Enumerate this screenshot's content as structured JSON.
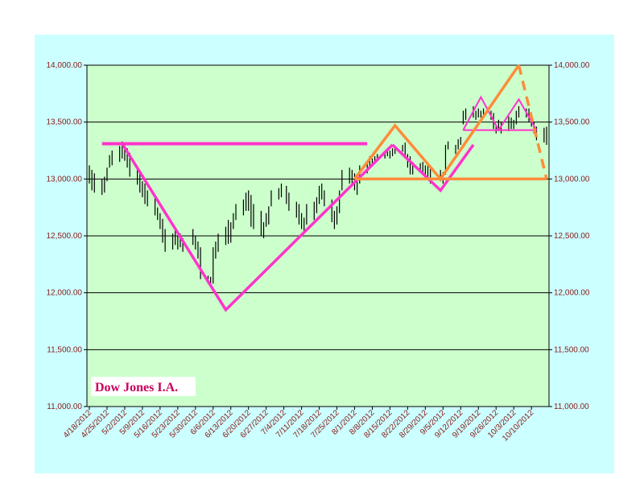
{
  "chart_data": {
    "type": "line",
    "title": "Dow Jones I.A.",
    "xlabel": "",
    "ylabel": "",
    "ylim": [
      11000,
      14000
    ],
    "y_ticks": [
      "11,000.00",
      "11,500.00",
      "12,000.00",
      "12,500.00",
      "13,000.00",
      "13,500.00",
      "14,000.00"
    ],
    "y_tick_values": [
      11000,
      11500,
      12000,
      12500,
      13000,
      13500,
      14000
    ],
    "y_ticks_right": [
      "11,000.00",
      "11,500.00",
      "12,000.00",
      "12,500.00",
      "13,000.00",
      "13,500.00",
      "14,000.00"
    ],
    "x_ticks": [
      "4/18/2012",
      "4/25/2012",
      "5/2/2012",
      "5/9/2012",
      "5/16/2012",
      "5/23/2012",
      "5/30/2012",
      "6/6/2012",
      "6/13/2012",
      "6/20/2012",
      "6/27/2012",
      "7/4/2012",
      "7/11/2012",
      "7/18/2012",
      "7/25/2012",
      "8/1/2012",
      "8/8/2012",
      "8/15/2012",
      "8/22/2012",
      "8/29/2012",
      "9/5/2012",
      "9/12/2012",
      "9/19/2012",
      "9/26/2012",
      "10/3/2012",
      "10/10/2012"
    ],
    "grid": true,
    "colors": {
      "background": "#ccffff",
      "plot": "#ccffcc",
      "price": "#000000",
      "magenta": "#ff33cc",
      "orange": "#ff8c3a",
      "axis_label": "#8b1a1a",
      "title": "#c8005a"
    },
    "price_series": {
      "name": "",
      "x": [
        "4/18/2012",
        "4/19/2012",
        "4/20/2012",
        "4/23/2012",
        "4/24/2012",
        "4/25/2012",
        "4/26/2012",
        "4/27/2012",
        "4/30/2012",
        "5/1/2012",
        "5/2/2012",
        "5/3/2012",
        "5/4/2012",
        "5/7/2012",
        "5/8/2012",
        "5/9/2012",
        "5/10/2012",
        "5/11/2012",
        "5/14/2012",
        "5/15/2012",
        "5/16/2012",
        "5/17/2012",
        "5/18/2012",
        "5/21/2012",
        "5/22/2012",
        "5/23/2012",
        "5/24/2012",
        "5/25/2012",
        "5/29/2012",
        "5/30/2012",
        "5/31/2012",
        "6/1/2012",
        "6/4/2012",
        "6/5/2012",
        "6/6/2012",
        "6/7/2012",
        "6/8/2012",
        "6/11/2012",
        "6/12/2012",
        "6/13/2012",
        "6/14/2012",
        "6/15/2012",
        "6/18/2012",
        "6/19/2012",
        "6/20/2012",
        "6/21/2012",
        "6/22/2012",
        "6/25/2012",
        "6/26/2012",
        "6/27/2012",
        "6/28/2012",
        "6/29/2012",
        "7/2/2012",
        "7/3/2012",
        "7/5/2012",
        "7/6/2012",
        "7/9/2012",
        "7/10/2012",
        "7/11/2012",
        "7/12/2012",
        "7/13/2012",
        "7/16/2012",
        "7/17/2012",
        "7/18/2012",
        "7/19/2012",
        "7/20/2012",
        "7/23/2012",
        "7/24/2012",
        "7/25/2012",
        "7/26/2012",
        "7/27/2012",
        "7/30/2012",
        "7/31/2012",
        "8/1/2012",
        "8/2/2012",
        "8/3/2012",
        "8/6/2012",
        "8/7/2012",
        "8/8/2012",
        "8/9/2012",
        "8/10/2012",
        "8/13/2012",
        "8/14/2012",
        "8/15/2012",
        "8/16/2012",
        "8/17/2012",
        "8/20/2012",
        "8/21/2012",
        "8/22/2012",
        "8/23/2012",
        "8/24/2012",
        "8/27/2012",
        "8/28/2012",
        "8/29/2012",
        "8/30/2012",
        "8/31/2012",
        "9/4/2012",
        "9/5/2012",
        "9/6/2012",
        "9/7/2012",
        "9/10/2012",
        "9/11/2012",
        "9/12/2012",
        "9/13/2012",
        "9/14/2012",
        "9/17/2012",
        "9/18/2012",
        "9/19/2012",
        "9/20/2012",
        "9/21/2012",
        "9/24/2012",
        "9/25/2012",
        "9/26/2012",
        "9/27/2012",
        "9/28/2012",
        "10/1/2012",
        "10/2/2012",
        "10/3/2012",
        "10/4/2012",
        "10/5/2012",
        "10/8/2012",
        "10/9/2012",
        "10/10/2012",
        "10/11/2012",
        "10/12/2012",
        "10/15/2012",
        "10/16/2012"
      ],
      "high": [
        13120,
        13080,
        13050,
        13000,
        13020,
        13100,
        13210,
        13250,
        13290,
        13330,
        13300,
        13270,
        13230,
        13100,
        13050,
        12980,
        12960,
        12900,
        12850,
        12750,
        12700,
        12650,
        12560,
        12520,
        12560,
        12500,
        12520,
        12480,
        12560,
        12500,
        12450,
        12400,
        12150,
        12140,
        12400,
        12450,
        12520,
        12580,
        12640,
        12620,
        12700,
        12780,
        12820,
        12880,
        12900,
        12860,
        12780,
        12720,
        12620,
        12700,
        12760,
        12900,
        12920,
        12960,
        12940,
        12880,
        12800,
        12780,
        12700,
        12660,
        12780,
        12800,
        12840,
        12940,
        12960,
        12900,
        12820,
        12720,
        12760,
        12900,
        13080,
        13100,
        13080,
        13050,
        13020,
        13120,
        13150,
        13200,
        13180,
        13200,
        13220,
        13240,
        13260,
        13250,
        13270,
        13280,
        13300,
        13320,
        13220,
        13200,
        13150,
        13140,
        13150,
        13120,
        13120,
        13120,
        13080,
        13060,
        13300,
        13330,
        13300,
        13350,
        13370,
        13600,
        13620,
        13640,
        13600,
        13620,
        13600,
        13620,
        13600,
        13580,
        13480,
        13520,
        13500,
        13550,
        13540,
        13520,
        13600,
        13640,
        13620,
        13620,
        13560,
        13500,
        13460,
        13450,
        13460
      ],
      "low": [
        12960,
        12900,
        12880,
        12860,
        12880,
        12980,
        13100,
        13120,
        13150,
        13180,
        13160,
        13100,
        13020,
        12950,
        12880,
        12840,
        12780,
        12760,
        12680,
        12640,
        12560,
        12440,
        12360,
        12380,
        12420,
        12380,
        12400,
        12360,
        12420,
        12380,
        12300,
        12120,
        12080,
        12060,
        12080,
        12300,
        12360,
        12420,
        12430,
        12440,
        12560,
        12640,
        12680,
        12720,
        12720,
        12580,
        12560,
        12500,
        12480,
        12580,
        12600,
        12760,
        12820,
        12840,
        12780,
        12720,
        12660,
        12600,
        12560,
        12520,
        12600,
        12640,
        12700,
        12780,
        12820,
        12760,
        12620,
        12560,
        12600,
        12700,
        12900,
        12960,
        12940,
        12900,
        12860,
        12960,
        13050,
        13100,
        13120,
        13140,
        13160,
        13180,
        13200,
        13180,
        13200,
        13220,
        13240,
        13180,
        13100,
        13040,
        13040,
        13060,
        13060,
        13000,
        13000,
        12960,
        12980,
        12960,
        13040,
        13260,
        13220,
        13260,
        13300,
        13480,
        13520,
        13540,
        13520,
        13540,
        13540,
        13560,
        13520,
        13440,
        13400,
        13420,
        13400,
        13420,
        13440,
        13440,
        13480,
        13540,
        13540,
        13500,
        13460,
        13400,
        13340,
        13320,
        13300
      ]
    },
    "overlay_lines": [
      {
        "name": "",
        "points": [
          [
            "4/23/2012",
            13310
          ],
          [
            "8/6/2012",
            13310
          ]
        ],
        "style": "magenta-thick"
      },
      {
        "name": "",
        "points": [
          [
            "5/1/2012",
            13310
          ],
          [
            "6/11/2012",
            11850
          ],
          [
            "8/16/2012",
            13300
          ]
        ],
        "style": "magenta"
      },
      {
        "name": "",
        "points": [
          [
            "8/16/2012",
            13300
          ],
          [
            "9/4/2012",
            12900
          ],
          [
            "9/17/2012",
            13300
          ]
        ],
        "style": "magenta"
      },
      {
        "name": "",
        "points": [
          [
            "9/13/2012",
            13430
          ],
          [
            "10/12/2012",
            13430
          ]
        ],
        "style": "magenta-thin"
      },
      {
        "name": "",
        "points": [
          [
            "9/13/2012",
            13430
          ],
          [
            "9/20/2012",
            13720
          ],
          [
            "9/27/2012",
            13430
          ]
        ],
        "style": "magenta-thin"
      },
      {
        "name": "",
        "points": [
          [
            "9/27/2012",
            13430
          ],
          [
            "10/5/2012",
            13700
          ],
          [
            "10/12/2012",
            13430
          ]
        ],
        "style": "magenta-thin"
      },
      {
        "name": "",
        "points": [
          [
            "8/1/2012",
            13000
          ],
          [
            "10/16/2012",
            13000
          ]
        ],
        "style": "orange"
      },
      {
        "name": "",
        "points": [
          [
            "8/1/2012",
            13000
          ],
          [
            "8/17/2012",
            13470
          ],
          [
            "9/4/2012",
            13000
          ],
          [
            "10/5/2012",
            14000
          ]
        ],
        "style": "orange"
      },
      {
        "name": "",
        "points": [
          [
            "10/5/2012",
            14000
          ],
          [
            "10/16/2012",
            13000
          ]
        ],
        "style": "orange-dashed"
      }
    ]
  }
}
